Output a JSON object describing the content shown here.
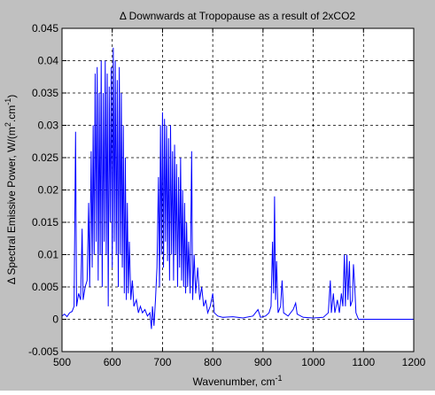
{
  "chart_data": {
    "type": "line",
    "title": "Δ Downwards at Tropopause as a result of 2xCO2",
    "xlabel": [
      "Wavenumber, cm",
      "-1"
    ],
    "ylabel": [
      "Δ Spectral Emissive Power, W/(m",
      "2",
      ".cm",
      "-1",
      ")"
    ],
    "xlim": [
      500,
      1200
    ],
    "xticks": [
      500,
      600,
      700,
      800,
      900,
      1000,
      1100,
      1200
    ],
    "ylim": [
      -0.005,
      0.045
    ],
    "yticks": [
      -0.005,
      0,
      0.005,
      0.01,
      0.015,
      0.02,
      0.025,
      0.03,
      0.035,
      0.04,
      0.045
    ],
    "grid": true,
    "color": "#0000ff",
    "x": [
      500,
      505,
      510,
      515,
      520,
      524,
      527,
      529,
      533,
      537,
      540,
      542,
      546,
      550,
      553,
      555,
      558,
      560,
      562,
      564,
      566,
      568,
      570,
      572,
      574,
      576,
      578,
      580,
      582,
      584,
      586,
      588,
      590,
      592,
      594,
      596,
      598,
      600,
      602,
      604,
      606,
      608,
      610,
      612,
      614,
      616,
      618,
      620,
      622,
      624,
      626,
      628,
      630,
      632,
      634,
      637,
      640,
      643,
      648,
      652,
      656,
      660,
      665,
      670,
      675,
      678,
      680,
      683,
      686,
      689,
      692,
      694,
      696,
      698,
      700,
      702,
      704,
      706,
      708,
      710,
      712,
      714,
      716,
      718,
      720,
      722,
      724,
      726,
      728,
      730,
      732,
      734,
      736,
      738,
      740,
      742,
      744,
      746,
      748,
      750,
      752,
      755,
      758,
      760,
      763,
      766,
      770,
      774,
      778,
      782,
      786,
      790,
      795,
      800,
      803,
      810,
      820,
      840,
      860,
      880,
      890,
      895,
      905,
      912,
      916,
      919,
      921,
      923,
      925,
      927,
      930,
      935,
      938,
      941,
      950,
      960,
      965,
      968,
      980,
      1000,
      1020,
      1030,
      1034,
      1036,
      1040,
      1043,
      1048,
      1052,
      1056,
      1059,
      1062,
      1064,
      1067,
      1069,
      1072,
      1074,
      1078,
      1080,
      1082,
      1085,
      1090,
      1200
    ],
    "values": [
      0.0005,
      0.0008,
      0.0004,
      0.001,
      0.0012,
      0.002,
      0.029,
      0.002,
      0.004,
      0.003,
      0.014,
      0.003,
      0.005,
      0.006,
      0.018,
      0.005,
      0.026,
      0.008,
      0.03,
      0.01,
      0.038,
      0.012,
      0.039,
      0.006,
      0.035,
      0.01,
      0.04,
      0.005,
      0.035,
      0.012,
      0.04,
      0.01,
      0.038,
      0.002,
      0.036,
      0.015,
      0.039,
      0.008,
      0.042,
      0.012,
      0.04,
      0.01,
      0.037,
      0.005,
      0.039,
      0.01,
      0.035,
      0.008,
      0.03,
      0.004,
      0.025,
      0.003,
      0.018,
      0.004,
      0.012,
      0.003,
      0.006,
      0.002,
      0.003,
      0.001,
      0.002,
      0.001,
      0.0015,
      0.0005,
      0.001,
      -0.0015,
      0.002,
      -0.001,
      0.003,
      0.008,
      0.022,
      0.005,
      0.03,
      0.01,
      0.032,
      0.008,
      0.031,
      0.012,
      0.03,
      0.009,
      0.028,
      0.006,
      0.03,
      0.01,
      0.026,
      0.006,
      0.027,
      0.01,
      0.024,
      0.005,
      0.022,
      0.008,
      0.025,
      0.006,
      0.02,
      0.005,
      0.018,
      0.004,
      0.015,
      0.005,
      0.012,
      0.004,
      0.026,
      0.003,
      0.01,
      0.004,
      0.008,
      0.003,
      0.005,
      0.002,
      0.003,
      0.001,
      0.002,
      0.004,
      0.001,
      0.0005,
      0.0003,
      0.0004,
      0.0002,
      0.0005,
      0.0015,
      0.0003,
      0.0005,
      0.001,
      0.002,
      0.012,
      0.004,
      0.019,
      0.003,
      0.009,
      0.001,
      0.002,
      0.006,
      0.001,
      0.0005,
      0.0015,
      0.0025,
      0.0008,
      0.0003,
      0.0002,
      0.0003,
      0.001,
      0.006,
      0.001,
      0.004,
      0.001,
      0.003,
      0.001,
      0.004,
      0.002,
      0.01,
      0.002,
      0.01,
      0.003,
      0.009,
      0.002,
      0.003,
      0.0085,
      0.006,
      0.001,
      0,
      0
    ]
  }
}
